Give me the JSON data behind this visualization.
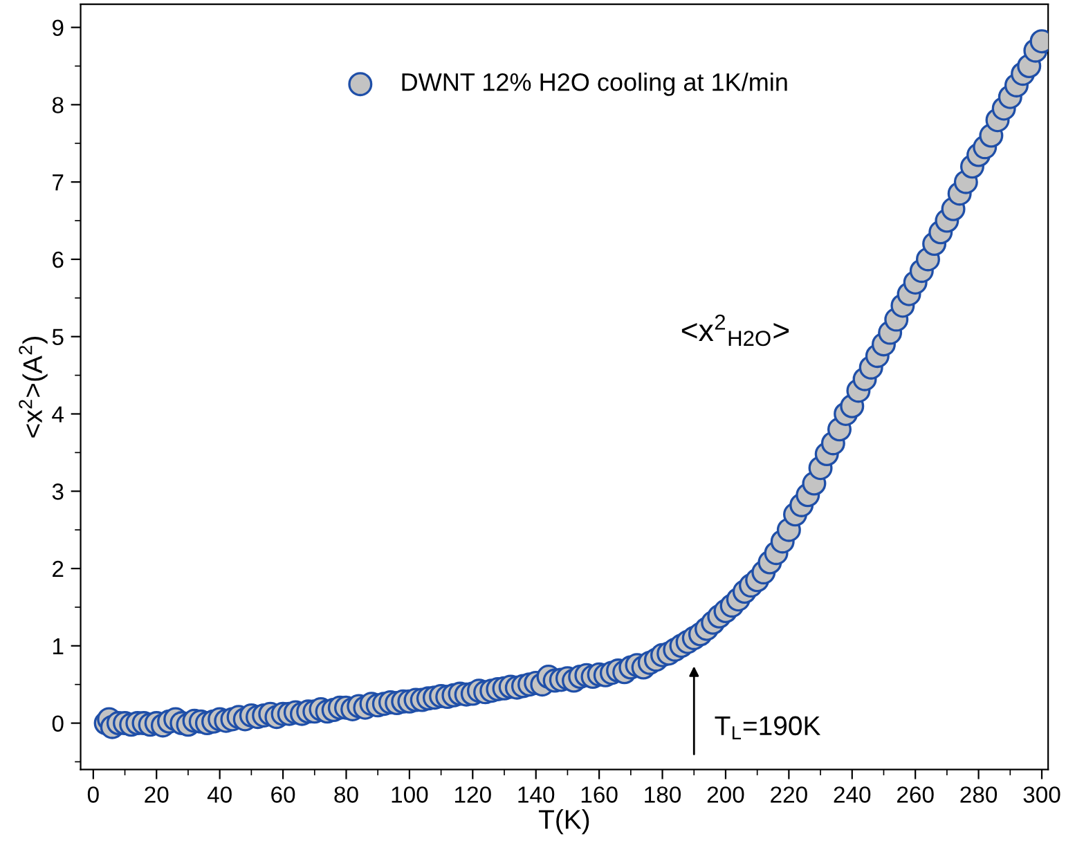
{
  "chart_data": {
    "type": "scatter",
    "xlabel": "T(K)",
    "ylabel": "<x$^{2}$>(A$^{2}$)",
    "xlim": [
      -4,
      302
    ],
    "ylim": [
      -0.6,
      9.3
    ],
    "xticks": [
      0,
      20,
      40,
      60,
      80,
      100,
      120,
      140,
      160,
      180,
      200,
      220,
      240,
      260,
      280,
      300
    ],
    "yticks": [
      0,
      1,
      2,
      3,
      4,
      5,
      6,
      7,
      8,
      9
    ],
    "marker": "circle",
    "legend": "top left",
    "grid": false,
    "series": [
      {
        "name": "DWNT 12% H2O cooling at 1K/min",
        "color": "#c3c3c3",
        "x": [
          4,
          5,
          6,
          8,
          10,
          12,
          14,
          16,
          18,
          20,
          22,
          24,
          26,
          28,
          30,
          32,
          34,
          36,
          38,
          40,
          42,
          44,
          46,
          48,
          50,
          52,
          54,
          56,
          58,
          60,
          62,
          64,
          66,
          68,
          70,
          72,
          74,
          76,
          78,
          80,
          82,
          84,
          86,
          88,
          90,
          92,
          94,
          96,
          98,
          100,
          102,
          104,
          106,
          108,
          110,
          112,
          114,
          116,
          118,
          120,
          122,
          124,
          126,
          128,
          130,
          132,
          134,
          136,
          138,
          140,
          142,
          144,
          146,
          148,
          150,
          152,
          154,
          156,
          158,
          160,
          162,
          164,
          166,
          168,
          170,
          172,
          174,
          176,
          178,
          180,
          182,
          184,
          186,
          188,
          190,
          192,
          194,
          196,
          198,
          200,
          202,
          204,
          206,
          208,
          210,
          212,
          214,
          216,
          218,
          220,
          222,
          224,
          226,
          228,
          230,
          232,
          234,
          236,
          238,
          240,
          242,
          244,
          246,
          248,
          250,
          252,
          254,
          256,
          258,
          260,
          262,
          264,
          266,
          268,
          270,
          272,
          274,
          276,
          278,
          280,
          282,
          284,
          286,
          288,
          290,
          292,
          294,
          296,
          298,
          300
        ],
        "values": [
          0.0,
          0.05,
          -0.05,
          0.0,
          0.0,
          -0.02,
          0.0,
          0.0,
          -0.02,
          0.0,
          -0.03,
          0.02,
          0.05,
          0.0,
          -0.02,
          0.03,
          0.02,
          0.0,
          0.02,
          0.05,
          0.03,
          0.05,
          0.08,
          0.05,
          0.1,
          0.08,
          0.1,
          0.12,
          0.08,
          0.12,
          0.12,
          0.14,
          0.12,
          0.15,
          0.15,
          0.18,
          0.15,
          0.17,
          0.2,
          0.2,
          0.18,
          0.22,
          0.2,
          0.25,
          0.23,
          0.25,
          0.27,
          0.26,
          0.28,
          0.28,
          0.3,
          0.3,
          0.32,
          0.33,
          0.35,
          0.34,
          0.36,
          0.38,
          0.37,
          0.38,
          0.42,
          0.4,
          0.42,
          0.44,
          0.45,
          0.47,
          0.46,
          0.48,
          0.5,
          0.52,
          0.5,
          0.6,
          0.55,
          0.56,
          0.58,
          0.55,
          0.6,
          0.62,
          0.6,
          0.63,
          0.62,
          0.65,
          0.68,
          0.66,
          0.72,
          0.75,
          0.72,
          0.78,
          0.82,
          0.88,
          0.9,
          0.95,
          1.0,
          1.05,
          1.1,
          1.15,
          1.22,
          1.3,
          1.38,
          1.45,
          1.52,
          1.6,
          1.7,
          1.78,
          1.85,
          1.95,
          2.08,
          2.2,
          2.35,
          2.5,
          2.7,
          2.82,
          2.95,
          3.1,
          3.3,
          3.48,
          3.62,
          3.8,
          4.0,
          4.1,
          4.3,
          4.45,
          4.6,
          4.75,
          4.9,
          5.05,
          5.22,
          5.4,
          5.55,
          5.7,
          5.85,
          6.0,
          6.2,
          6.35,
          6.5,
          6.65,
          6.85,
          7.0,
          7.2,
          7.35,
          7.45,
          7.6,
          7.8,
          7.95,
          8.1,
          8.25,
          8.4,
          8.5,
          8.7,
          8.82
        ]
      }
    ],
    "annotations": [
      "<x$^{2}$$_{H2O}$>",
      "T$_{L}$=190K"
    ]
  }
}
